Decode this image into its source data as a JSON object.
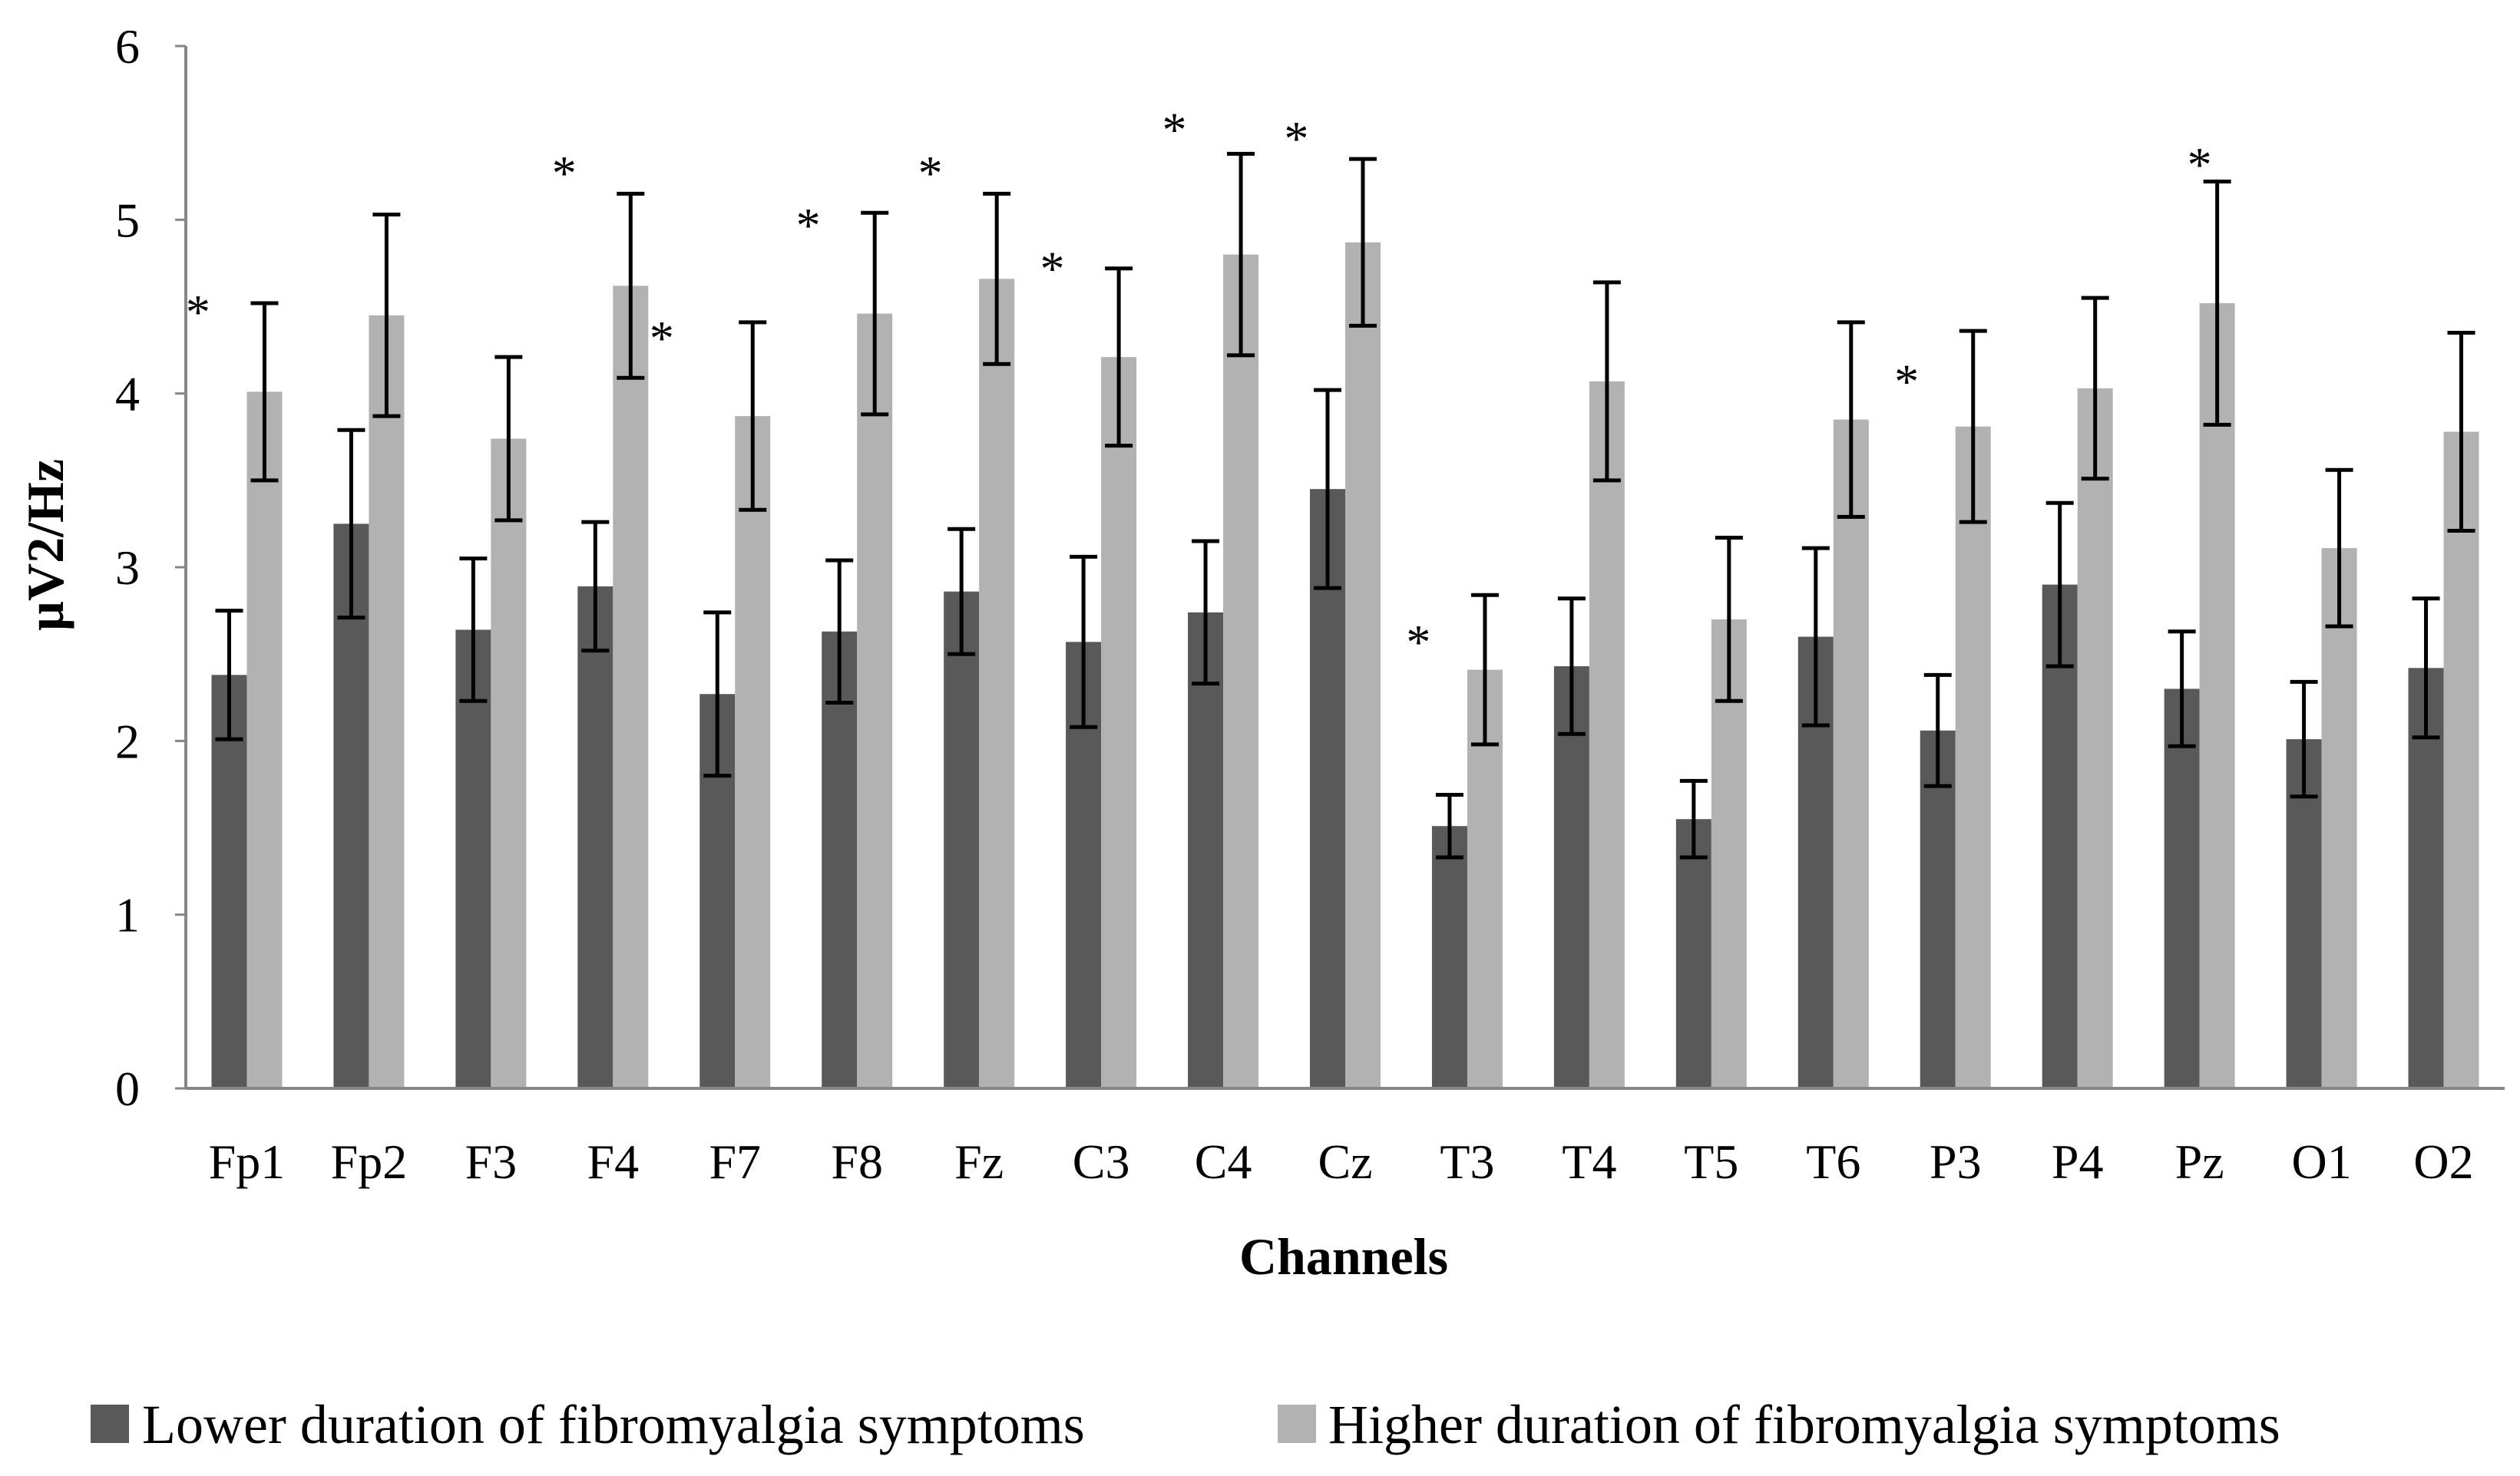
{
  "chart_data": {
    "type": "bar",
    "title": "",
    "xlabel": "Channels",
    "ylabel": "µV2/Hz",
    "ylim": [
      0,
      6
    ],
    "yticks": [
      "0",
      "1",
      "2",
      "3",
      "4",
      "5",
      "6"
    ],
    "grid": false,
    "legend_position": "bottom",
    "categories": [
      "Fp1",
      "Fp2",
      "F3",
      "F4",
      "F7",
      "F8",
      "Fz",
      "C3",
      "C4",
      "Cz",
      "T3",
      "T4",
      "T5",
      "T6",
      "P3",
      "P4",
      "Pz",
      "O1",
      "O2"
    ],
    "series": [
      {
        "name": "Lower duration of fibromyalgia symptoms",
        "color": "#595959",
        "values": [
          2.38,
          3.25,
          2.64,
          2.89,
          2.27,
          2.63,
          2.86,
          2.57,
          2.74,
          3.45,
          1.51,
          2.43,
          1.55,
          2.6,
          2.06,
          2.9,
          2.3,
          2.01,
          2.42
        ],
        "errors": [
          0.37,
          0.54,
          0.41,
          0.37,
          0.47,
          0.41,
          0.36,
          0.49,
          0.41,
          0.57,
          0.18,
          0.39,
          0.22,
          0.51,
          0.32,
          0.47,
          0.33,
          0.33,
          0.4
        ]
      },
      {
        "name": "Higher duration of fibromyalgia symptoms",
        "color": "#b2b2b2",
        "values": [
          4.01,
          4.45,
          3.74,
          4.62,
          3.87,
          4.46,
          4.66,
          4.21,
          4.8,
          4.87,
          2.41,
          4.07,
          2.7,
          3.85,
          3.81,
          4.03,
          4.52,
          3.11,
          3.78
        ],
        "errors": [
          0.51,
          0.58,
          0.47,
          0.53,
          0.54,
          0.58,
          0.49,
          0.51,
          0.58,
          0.48,
          0.43,
          0.57,
          0.47,
          0.56,
          0.55,
          0.52,
          0.7,
          0.45,
          0.57
        ]
      }
    ],
    "annotations": [
      {
        "text": "*",
        "category": "Fp1",
        "side": "left",
        "value": 4.55
      },
      {
        "text": "*",
        "category": "F4",
        "side": "left",
        "value": 5.35
      },
      {
        "text": "*",
        "category": "F4",
        "side": "right",
        "value": 4.4
      },
      {
        "text": "*",
        "category": "F8",
        "side": "left",
        "value": 5.05
      },
      {
        "text": "*",
        "category": "Fz",
        "side": "left",
        "value": 5.35
      },
      {
        "text": "*",
        "category": "C3",
        "side": "left",
        "value": 4.8
      },
      {
        "text": "*",
        "category": "C4",
        "side": "left",
        "value": 5.6
      },
      {
        "text": "*",
        "category": "Cz",
        "side": "left",
        "value": 5.55
      },
      {
        "text": "*",
        "category": "T3",
        "side": "left",
        "value": 2.65
      },
      {
        "text": "*",
        "category": "P3",
        "side": "left",
        "value": 4.15
      },
      {
        "text": "*",
        "category": "Pz",
        "side": "center",
        "value": 5.4
      }
    ]
  }
}
